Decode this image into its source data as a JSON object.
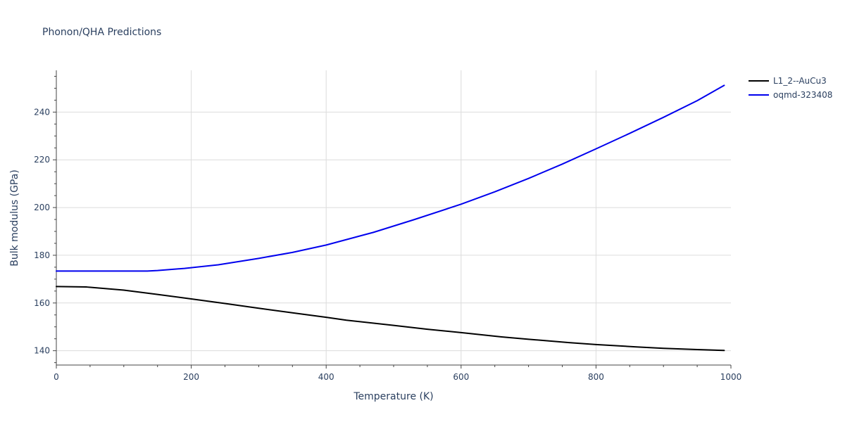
{
  "chart_data": {
    "type": "line",
    "title": "Phonon/QHA Predictions",
    "xlabel": "Temperature (K)",
    "ylabel": "Bulk modulus (GPa)",
    "xlim": [
      0,
      1000
    ],
    "ylim": [
      134,
      257.5
    ],
    "x_ticks": [
      0,
      200,
      400,
      600,
      800,
      1000
    ],
    "y_ticks": [
      140,
      160,
      180,
      200,
      220,
      240
    ],
    "x_tick_labels": [
      "0",
      "200",
      "400",
      "600",
      "800",
      "1000"
    ],
    "y_tick_labels": [
      "140",
      "160",
      "180",
      "200",
      "220",
      "240"
    ],
    "grid": true,
    "legend_position": "top-right",
    "series": [
      {
        "name": "L1_2--AuCu3",
        "color": "#000000",
        "x": [
          0,
          45,
          100,
          150,
          200,
          250,
          300,
          350,
          400,
          430,
          500,
          550,
          600,
          660,
          700,
          760,
          800,
          860,
          900,
          950,
          990
        ],
        "y": [
          166.9,
          166.7,
          165.4,
          163.6,
          161.7,
          159.8,
          157.8,
          155.9,
          154.0,
          152.8,
          150.6,
          149.0,
          147.6,
          145.8,
          144.8,
          143.4,
          142.6,
          141.6,
          141.0,
          140.5,
          140.1
        ]
      },
      {
        "name": "oqmd-323408",
        "color": "#0000ee",
        "x": [
          0,
          50,
          100,
          135,
          150,
          190,
          240,
          300,
          350,
          400,
          470,
          530,
          600,
          650,
          700,
          750,
          800,
          850,
          900,
          950,
          990
        ],
        "y": [
          173.4,
          173.4,
          173.4,
          173.4,
          173.6,
          174.5,
          176.0,
          178.7,
          181.2,
          184.3,
          189.6,
          194.9,
          201.4,
          206.6,
          212.2,
          218.2,
          224.6,
          231.1,
          237.8,
          244.8,
          251.2
        ]
      }
    ]
  }
}
